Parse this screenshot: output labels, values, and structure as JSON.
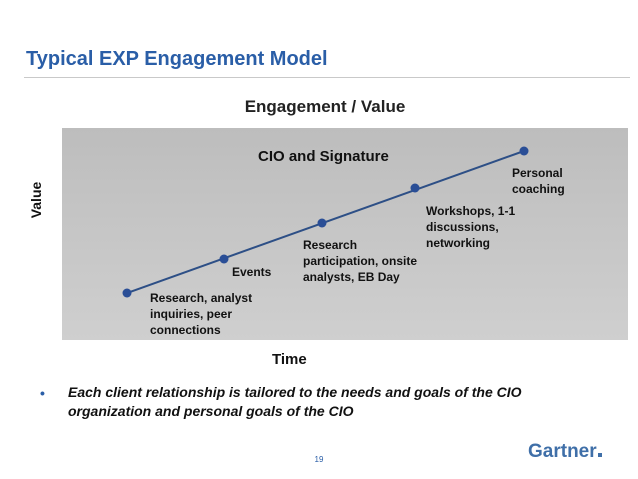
{
  "slide": {
    "title": "Typical EXP Engagement Model",
    "bullet": "Each client relationship is tailored to the needs and goals of the CIO organization and personal goals of the CIO",
    "page_number": "19",
    "logo_text": "Gartner"
  },
  "chart": {
    "heading": "Engagement / Value",
    "segment_title": "CIO and Signature",
    "y_axis_label": "Value",
    "x_axis_label": "Time",
    "colors": {
      "line": "#2d4f86",
      "marker": "#2a4e96",
      "panel": "#c4c4c4",
      "title": "#2a5ea7"
    },
    "milestones": [
      {
        "label": "Research, analyst\ninquiries, peer\nconnections"
      },
      {
        "label": "Events"
      },
      {
        "label": "Research\nparticipation, onsite\nanalysts, EB Day"
      },
      {
        "label": "Workshops, 1-1\ndiscussions,\nnetworking"
      },
      {
        "label": "Personal\ncoaching"
      }
    ]
  }
}
